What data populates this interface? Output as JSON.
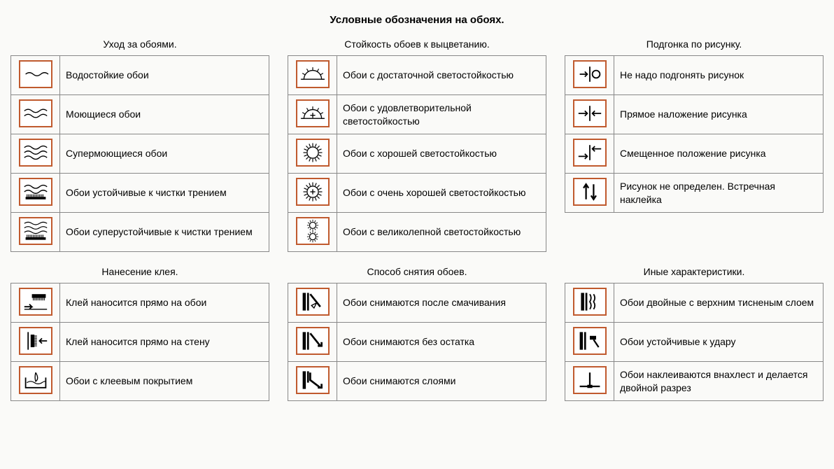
{
  "main_title": "Условные обозначения на обоях.",
  "colors": {
    "icon_border": "#c05a2e",
    "cell_border": "#888888",
    "stroke": "#000000",
    "background": "#fafaf8"
  },
  "sections": [
    {
      "title": "Уход за обоями.",
      "items": [
        {
          "icon": "wave1",
          "label": "Водостойкие обои"
        },
        {
          "icon": "wave2",
          "label": "Моющиеся обои"
        },
        {
          "icon": "wave3",
          "label": "Супермоющиеся обои"
        },
        {
          "icon": "wave2brush",
          "label": "Обои устойчивые к чистки трением"
        },
        {
          "icon": "wave3brush",
          "label": "Обои суперустойчивые к чистки трением"
        }
      ]
    },
    {
      "title": "Стойкость обоев к выцветанию.",
      "items": [
        {
          "icon": "sunhalf",
          "label": "Обои с достаточной светостойкостью"
        },
        {
          "icon": "sunhalfplus",
          "label": "Обои с удовлетворительной светостойкостью"
        },
        {
          "icon": "sunfull",
          "label": "Обои с хорошей светостойкостью"
        },
        {
          "icon": "sunfullplus",
          "label": "Обои с очень хорошей светостойкостью"
        },
        {
          "icon": "sundouble",
          "label": "Обои с великолепной светостойкостью"
        }
      ]
    },
    {
      "title": "Подгонка по рисунку.",
      "items": [
        {
          "icon": "arrow0",
          "label": "Не надо подгонять рисунок"
        },
        {
          "icon": "arrowstraight",
          "label": "Прямое наложение рисунка"
        },
        {
          "icon": "arrowoffset",
          "label": "Смещенное положение рисунка"
        },
        {
          "icon": "arrowsopposite",
          "label": "Рисунок не определен. Встречная наклейка"
        }
      ]
    },
    {
      "title": "Нанесение клея.",
      "items": [
        {
          "icon": "gluepaper",
          "label": "Клей наносится прямо на обои"
        },
        {
          "icon": "gluewall",
          "label": "Клей наносится прямо на стену"
        },
        {
          "icon": "gluewater",
          "label": "Обои с клеевым покрытием"
        }
      ]
    },
    {
      "title": "Способ снятия обоев.",
      "items": [
        {
          "icon": "removewet",
          "label": "Обои снимаются после смачивания"
        },
        {
          "icon": "removefull",
          "label": "Обои снимаются без остатка"
        },
        {
          "icon": "removelayer",
          "label": "Обои снимаются слоями"
        }
      ]
    },
    {
      "title": "Иные характеристики.",
      "items": [
        {
          "icon": "doubleemboss",
          "label": "Обои двойные с верхним тисненым слоем"
        },
        {
          "icon": "impact",
          "label": "Обои устойчивые к удару"
        },
        {
          "icon": "overlap",
          "label": "Обои наклеиваются внахлест и делается двойной разрез"
        }
      ]
    }
  ]
}
